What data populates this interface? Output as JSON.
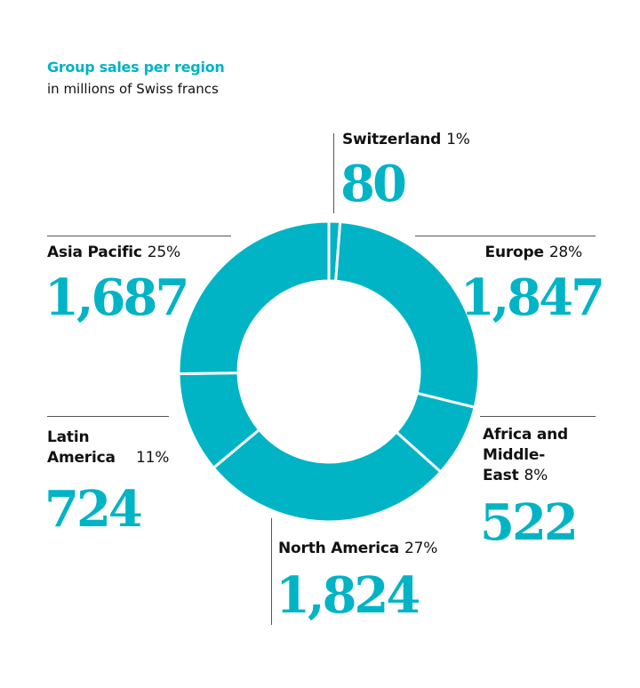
{
  "chart_data": {
    "type": "pie",
    "title": "Group sales per region",
    "subtitle": "in millions of Swiss francs",
    "donut": true,
    "color": "#00b4c5",
    "slices": [
      {
        "label": "Switzerland",
        "value": 80,
        "value_label": "80",
        "percent": "1%"
      },
      {
        "label": "Europe",
        "value": 1847,
        "value_label": "1,847",
        "percent": "28%"
      },
      {
        "label": "Africa and Middle-East",
        "value": 522,
        "value_label": "522",
        "percent": "8%"
      },
      {
        "label": "North America",
        "value": 1824,
        "value_label": "1,824",
        "percent": "27%"
      },
      {
        "label": "Latin America",
        "value": 724,
        "value_label": "724",
        "percent": "11%"
      },
      {
        "label": "Asia Pacific",
        "value": 1687,
        "value_label": "1,687",
        "percent": "25%"
      }
    ]
  }
}
